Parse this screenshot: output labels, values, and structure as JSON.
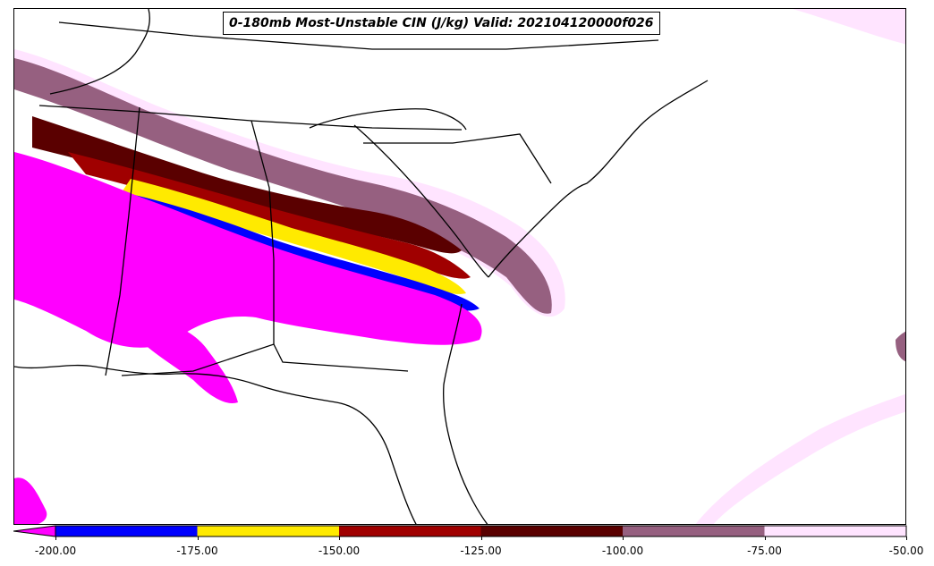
{
  "title": "0-180mb Most-Unstable CIN (J/kg) Valid: 202104120000f026",
  "colorbar": {
    "ticks": [
      "-200.00",
      "-175.00",
      "-150.00",
      "-125.00",
      "-100.00",
      "-75.00",
      "-50.00"
    ],
    "bins": [
      {
        "range": [
          -200,
          -175
        ],
        "color": "#0000ff"
      },
      {
        "range": [
          -175,
          -150
        ],
        "color": "#ffea00"
      },
      {
        "range": [
          -150,
          -125
        ],
        "color": "#a00000"
      },
      {
        "range": [
          -125,
          -100
        ],
        "color": "#5a0000"
      },
      {
        "range": [
          -100,
          -75
        ],
        "color": "#966080"
      },
      {
        "range": [
          -75,
          -50
        ],
        "color": "#ffe4ff"
      }
    ],
    "underflow_color": "#ff00ff",
    "extend": "min"
  },
  "colors": {
    "magenta": "#ff00ff",
    "blue": "#0000ff",
    "yellow": "#ffea00",
    "red": "#a00000",
    "darkred": "#5a0000",
    "mauve": "#966080",
    "pink": "#ffe4ff"
  }
}
